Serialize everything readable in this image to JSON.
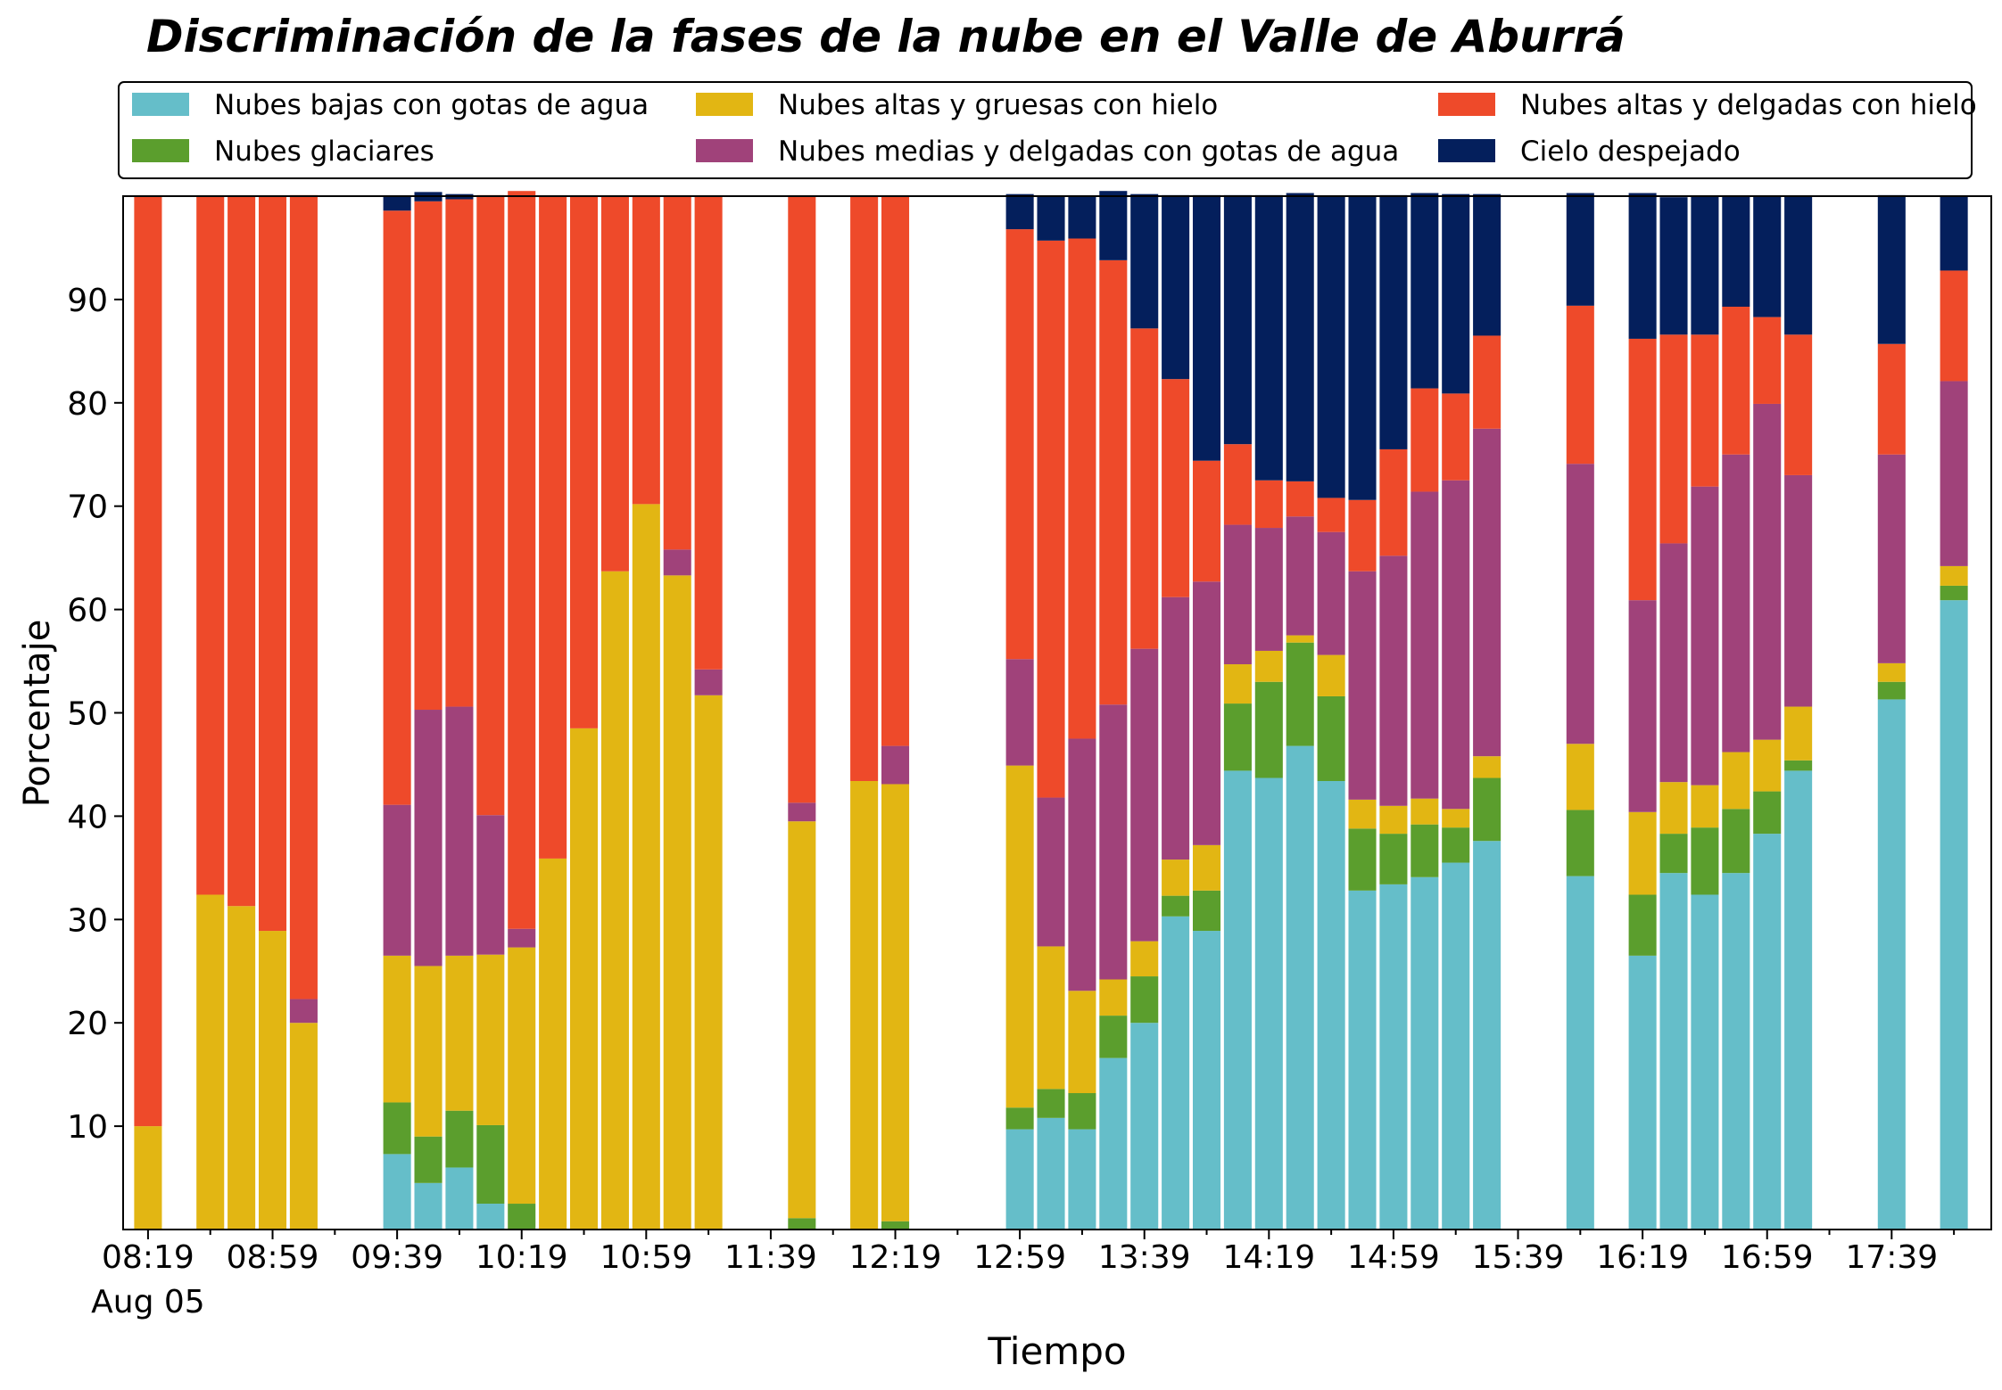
{
  "chart_data": {
    "type": "bar",
    "stacked": true,
    "title": "Discriminación de la fases de la nube en el Valle de Aburrá",
    "xlabel": "Tiempo",
    "ylabel": "Porcentaje",
    "ylim": [
      0,
      100
    ],
    "yticks": [
      10,
      20,
      30,
      40,
      50,
      60,
      70,
      80,
      90
    ],
    "grid": false,
    "legend_position": "top",
    "legend_columns": 3,
    "x_range": [
      "08:11",
      "18:11"
    ],
    "bar_interval_minutes": 10,
    "xtick_labels": [
      "08:19",
      "08:59",
      "09:39",
      "10:19",
      "10:59",
      "11:39",
      "12:19",
      "12:59",
      "13:39",
      "14:19",
      "14:59",
      "15:39",
      "16:19",
      "16:59",
      "17:39"
    ],
    "xtick_sublabel": "Aug 05",
    "x": [
      "08:19",
      "08:29",
      "08:39",
      "08:49",
      "08:59",
      "09:09",
      "09:19",
      "09:29",
      "09:39",
      "09:49",
      "09:59",
      "10:09",
      "10:19",
      "10:29",
      "10:39",
      "10:49",
      "10:59",
      "11:09",
      "11:19",
      "11:29",
      "11:39",
      "11:49",
      "11:59",
      "12:09",
      "12:19",
      "12:29",
      "12:39",
      "12:49",
      "12:59",
      "13:09",
      "13:19",
      "13:29",
      "13:39",
      "13:49",
      "13:59",
      "14:09",
      "14:19",
      "14:29",
      "14:39",
      "14:49",
      "14:59",
      "15:09",
      "15:19",
      "15:29",
      "15:39",
      "15:49",
      "15:59",
      "16:09",
      "16:19",
      "16:29",
      "16:39",
      "16:49",
      "16:59",
      "17:09",
      "17:19",
      "17:29",
      "17:39",
      "17:49",
      "17:59"
    ],
    "series": [
      {
        "name": "Nubes bajas con gotas de agua",
        "color": "#65BEC9",
        "values": [
          0,
          0,
          0,
          0,
          0,
          0,
          0,
          0,
          7.3,
          4.5,
          6,
          2.5,
          0,
          0,
          0,
          0,
          0,
          0,
          0,
          0,
          0,
          0,
          0,
          0,
          0,
          0,
          0,
          0,
          9.7,
          10.8,
          9.7,
          16.6,
          20,
          30.3,
          28.9,
          44.4,
          43.7,
          46.8,
          43.4,
          32.8,
          33.4,
          34.1,
          35.5,
          37.6,
          0,
          0,
          34.2,
          0,
          26.5,
          34.5,
          32.4,
          34.5,
          38.3,
          44.4,
          0,
          0,
          51.3,
          0,
          60.9
        ]
      },
      {
        "name": "Nubes glaciares",
        "color": "#5B9E2D",
        "values": [
          0,
          0,
          0,
          0,
          0,
          0,
          0,
          0,
          5,
          4.5,
          5.5,
          7.6,
          2.5,
          0,
          0,
          0,
          0,
          0,
          0,
          0,
          0,
          1.1,
          0,
          0,
          0.8,
          0,
          0,
          0,
          2.1,
          2.8,
          3.5,
          4.1,
          4.5,
          2,
          3.9,
          6.5,
          9.3,
          10,
          8.2,
          6,
          4.9,
          5.1,
          3.4,
          6.1,
          0,
          0,
          6.4,
          0,
          5.9,
          3.8,
          6.5,
          6.2,
          4.1,
          1,
          0,
          0,
          1.7,
          0,
          1.4
        ]
      },
      {
        "name": "Nubes altas y gruesas con hielo",
        "color": "#E2B613",
        "values": [
          10,
          0,
          32.4,
          31.3,
          28.9,
          20,
          0,
          0,
          14.2,
          16.5,
          15,
          16.5,
          24.8,
          35.9,
          48.5,
          63.7,
          70.2,
          63.3,
          51.7,
          0,
          0,
          38.4,
          0,
          43.4,
          42.3,
          0,
          0,
          0,
          33.1,
          13.8,
          9.9,
          3.5,
          3.4,
          3.5,
          4.4,
          3.8,
          3,
          0.7,
          4,
          2.8,
          2.7,
          2.5,
          1.8,
          2.1,
          0,
          0,
          6.4,
          0,
          8,
          5,
          4.1,
          5.5,
          5,
          5.2,
          0,
          0,
          1.8,
          0,
          1.9
        ]
      },
      {
        "name": "Nubes medias y delgadas con gotas de agua",
        "color": "#A0427A",
        "values": [
          0,
          0,
          0,
          0,
          0,
          2.3,
          0,
          0,
          14.6,
          24.8,
          24.1,
          13.5,
          1.8,
          0,
          0,
          0,
          0,
          2.5,
          2.5,
          0,
          0,
          1.8,
          0,
          0,
          3.7,
          0,
          0,
          0,
          10.3,
          14.4,
          24.4,
          26.6,
          28.3,
          25.4,
          25.5,
          13.5,
          11.9,
          11.5,
          11.9,
          22.1,
          24.2,
          29.7,
          31.8,
          31.7,
          0,
          0,
          27.1,
          0,
          20.5,
          23.1,
          28.9,
          28.8,
          32.5,
          22.4,
          0,
          0,
          20.2,
          0,
          17.9
        ]
      },
      {
        "name": "Nubes altas y delgadas con hielo",
        "color": "#EE4A2A",
        "values": [
          90,
          0,
          67.6,
          68.7,
          71.1,
          77.8,
          0,
          0,
          57.5,
          49.2,
          49.1,
          60,
          71.4,
          64.1,
          51.5,
          36.3,
          29.8,
          34.2,
          45.8,
          0,
          0,
          58.7,
          0,
          56.6,
          53.2,
          0,
          0,
          0,
          41.6,
          53.9,
          48.4,
          43,
          31,
          21.1,
          11.7,
          7.8,
          4.6,
          3.4,
          3.3,
          6.9,
          10.3,
          10,
          8.4,
          9,
          0,
          0,
          15.3,
          0,
          25.3,
          20.2,
          14.7,
          14.3,
          8.4,
          13.6,
          0,
          0,
          10.7,
          0,
          10.7
        ]
      },
      {
        "name": "Cielo despejado",
        "color": "#041F5C",
        "values": [
          0,
          0,
          0,
          0,
          0,
          0,
          0,
          0,
          1.4,
          0.9,
          0.5,
          0,
          0,
          0,
          0,
          0,
          0,
          0,
          0,
          0,
          0,
          0,
          0,
          0,
          0,
          0,
          0,
          0,
          3.4,
          4.3,
          4.1,
          6.7,
          13,
          17.8,
          25.7,
          24.1,
          27.6,
          27.9,
          29.2,
          29.4,
          24.6,
          18.9,
          19.3,
          13.7,
          0,
          0,
          10.9,
          0,
          14.1,
          13.3,
          13.4,
          10.7,
          11.7,
          13.4,
          0,
          0,
          14.4,
          0,
          7.2
        ]
      }
    ]
  }
}
